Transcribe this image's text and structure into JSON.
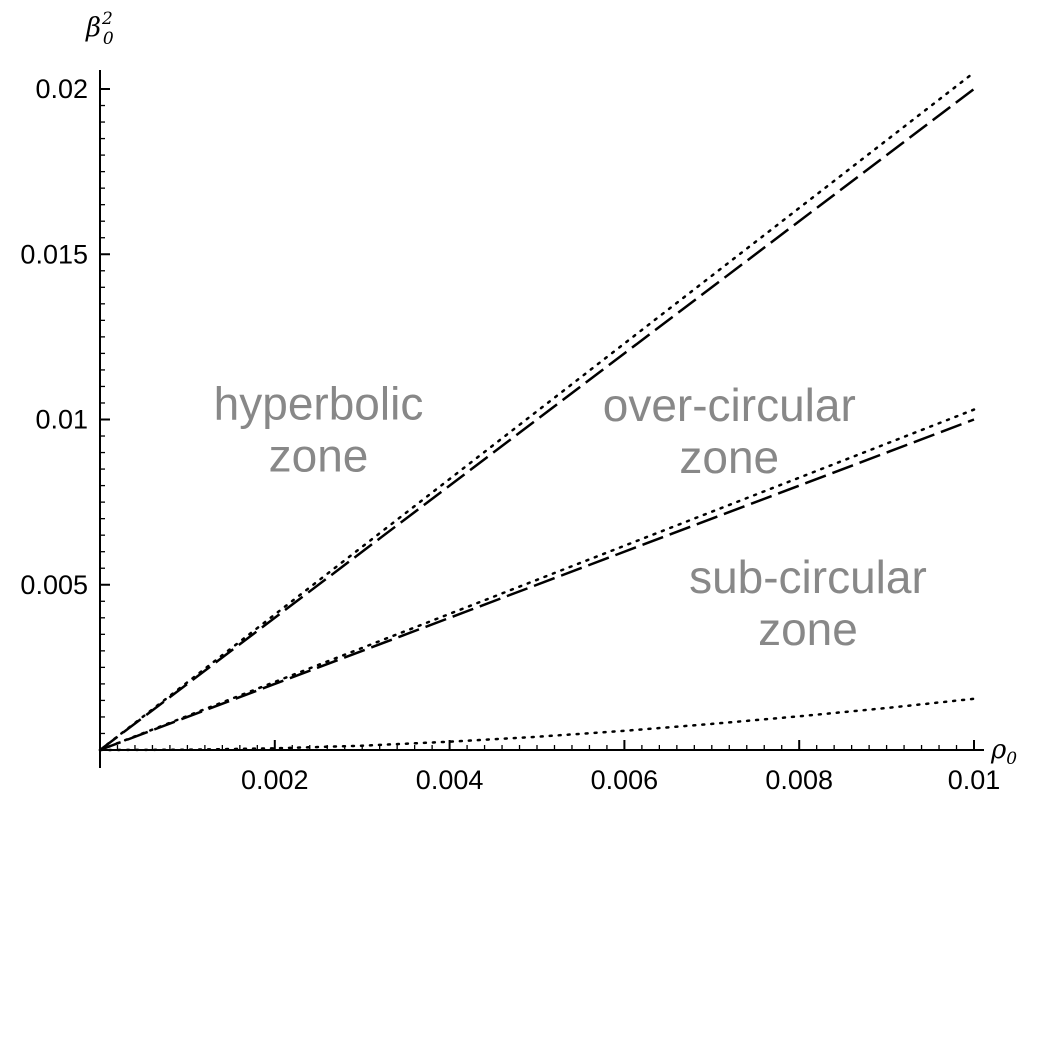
{
  "chart_data": {
    "type": "line",
    "xlabel": {
      "base": "ρ",
      "sub": "0"
    },
    "ylabel": {
      "base": "β",
      "sub": "0",
      "sup": "2"
    },
    "xlim": [
      0,
      0.01
    ],
    "ylim": [
      0,
      0.0205
    ],
    "x_ticks": [
      {
        "value": 0.002,
        "label": "0.002"
      },
      {
        "value": 0.004,
        "label": "0.004"
      },
      {
        "value": 0.006,
        "label": "0.006"
      },
      {
        "value": 0.008,
        "label": "0.008"
      },
      {
        "value": 0.01,
        "label": "0.01"
      }
    ],
    "y_ticks": [
      {
        "value": 0.005,
        "label": "0.005"
      },
      {
        "value": 0.01,
        "label": "0.01"
      },
      {
        "value": 0.015,
        "label": "0.015"
      },
      {
        "value": 0.02,
        "label": "0.02"
      }
    ],
    "grid": false,
    "series": [
      {
        "style": "dashed",
        "color": "#000000",
        "x": [
          0,
          0.01
        ],
        "y": [
          0,
          0.02
        ]
      },
      {
        "style": "dotted",
        "color": "#000000",
        "x": [
          0,
          0.01
        ],
        "y": [
          0,
          0.0205
        ]
      },
      {
        "style": "dashed",
        "color": "#000000",
        "x": [
          0,
          0.01
        ],
        "y": [
          0,
          0.01
        ]
      },
      {
        "style": "dotted",
        "color": "#000000",
        "x": [
          0,
          0.01
        ],
        "y": [
          0,
          0.0103
        ]
      },
      {
        "style": "dotted",
        "color": "#000000",
        "x": [
          0,
          0.001,
          0.002,
          0.003,
          0.004,
          0.005,
          0.006,
          0.007,
          0.008,
          0.009,
          0.01
        ],
        "y": [
          0,
          1e-05,
          5e-05,
          0.00013,
          0.00025,
          0.0004,
          0.00058,
          0.00079,
          0.00102,
          0.00127,
          0.00155
        ]
      }
    ],
    "annotations": [
      {
        "lines": [
          "hyperbolic",
          "zone"
        ],
        "x": 0.0025,
        "y": 0.01
      },
      {
        "lines": [
          "over-circular",
          "zone"
        ],
        "x": 0.0072,
        "y": 0.00995
      },
      {
        "lines": [
          "sub-circular",
          "zone"
        ],
        "x": 0.0081,
        "y": 0.00475
      }
    ]
  }
}
